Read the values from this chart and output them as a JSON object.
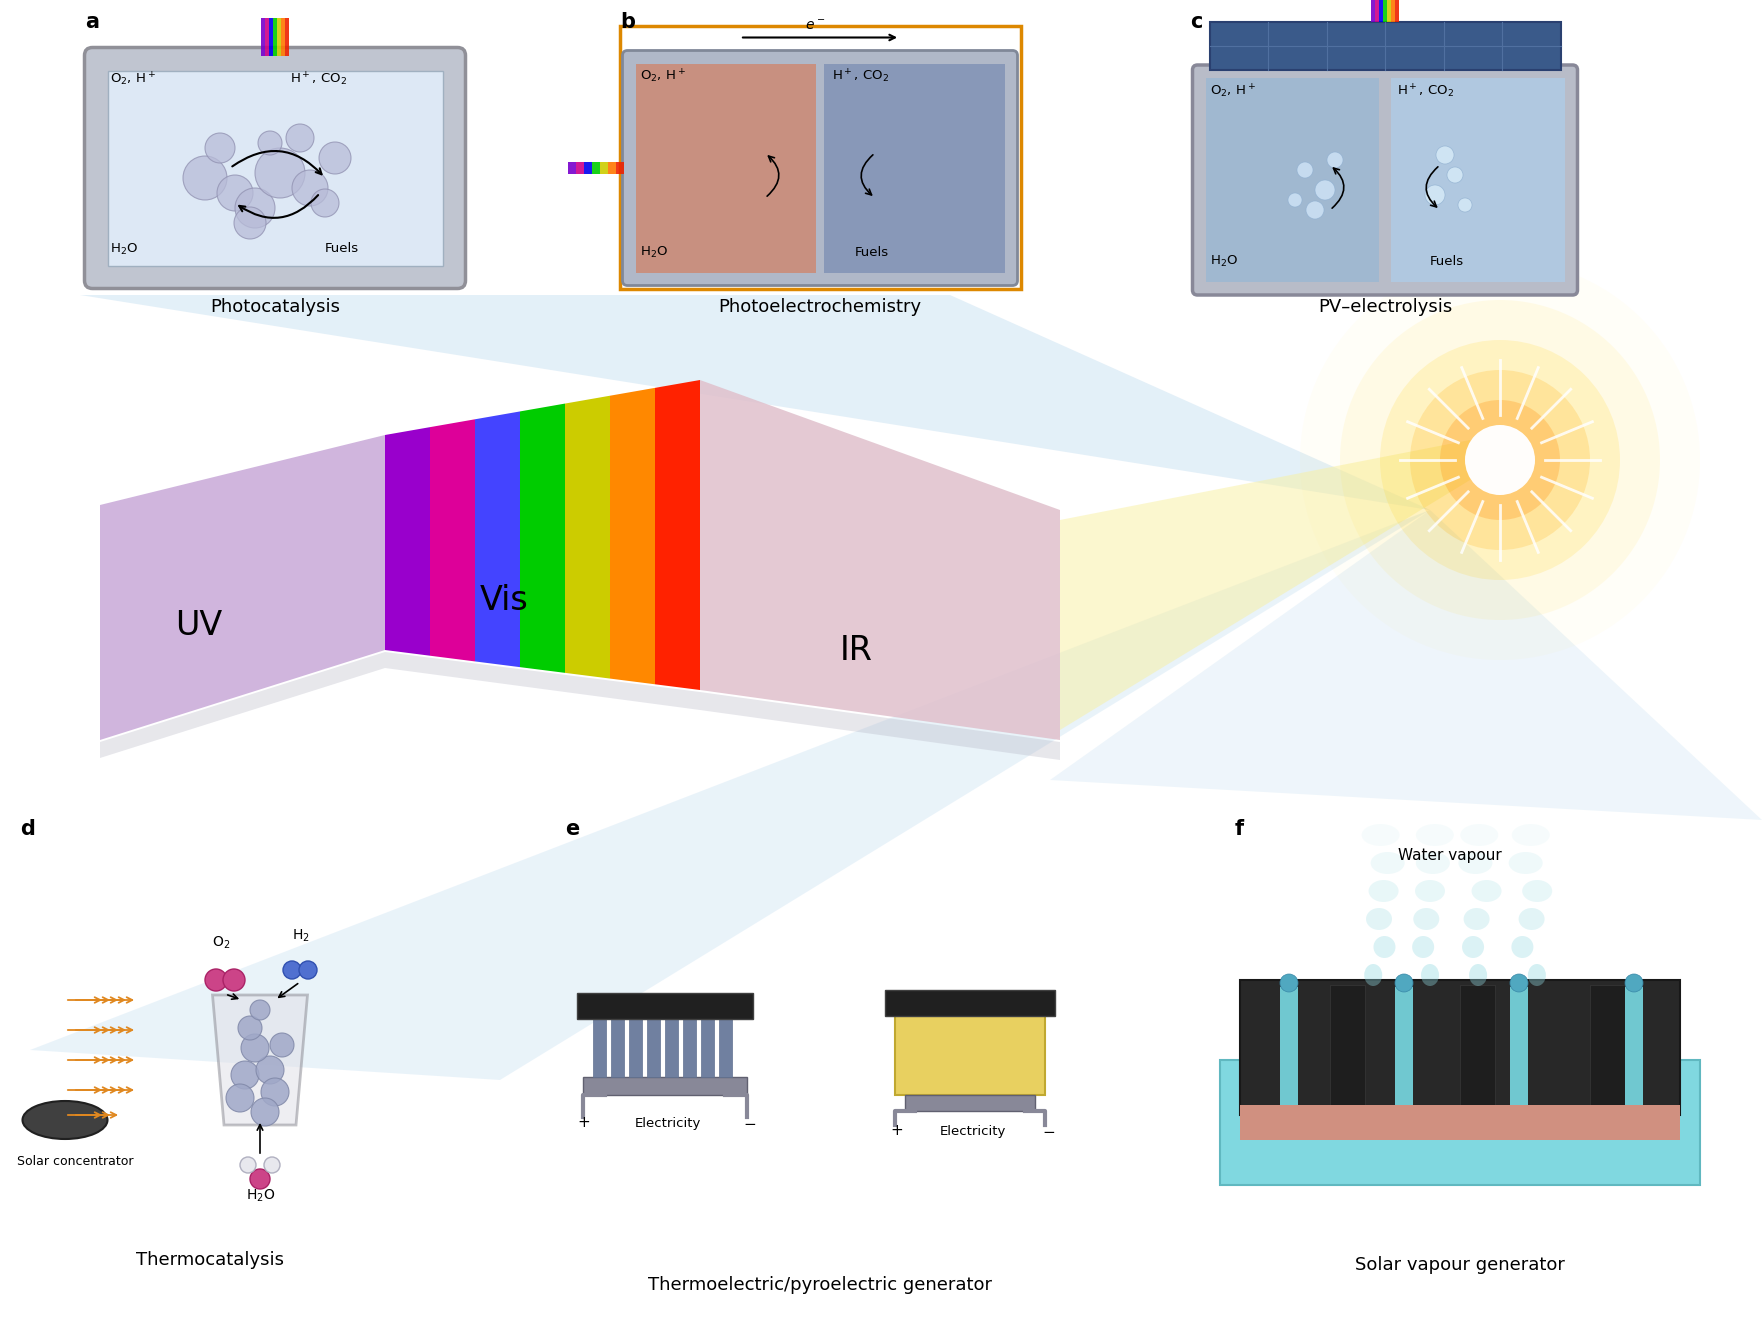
{
  "bg_color": "#ffffff",
  "panel_labels": [
    "a",
    "b",
    "c",
    "d",
    "e",
    "f"
  ],
  "panel_captions": [
    "Photocatalysis",
    "Photoelectrochemistry",
    "PV–electrolysis",
    "Thermocatalysis",
    "Thermoelectric/pyroelectric generator",
    "Solar vapour generator"
  ],
  "spectrum_labels": [
    "UV",
    "Vis",
    "IR"
  ],
  "uv_color": "#c8a8d8",
  "ir_color": "#e8c8d0",
  "light_beam_color": "#e8f4ff",
  "sun_color": "#ffdd44",
  "reactor_bg_a": "#d0d8e8",
  "reactor_bg_b_left": "#c8a0a0",
  "reactor_bg_b_right": "#a0b8d0",
  "reactor_bg_c": "#c8d8e8",
  "water_color": "#b8d8f0",
  "bubble_color_a": "#b8b8d8",
  "bubble_color_b": "#d0e8f8",
  "electrode_color": "#7090b0",
  "pv_color": "#4060a0",
  "solar_conc_color": "#404040",
  "catalyst_color": "#a0a8c8",
  "thermoelectric_blue": "#8090b0",
  "thermoelectric_yellow": "#e8d060",
  "vapour_device_color": "#303030",
  "vapour_water_color": "#80d8e0",
  "vapour_pink": "#d09080",
  "orange_arrow_color": "#e08820"
}
